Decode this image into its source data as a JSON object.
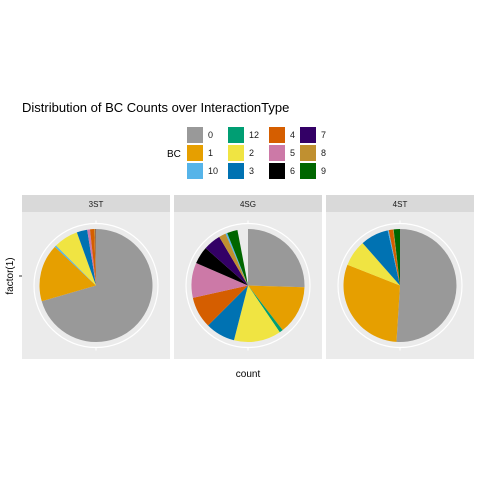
{
  "chart_data": {
    "type": "pie",
    "title": "Distribution of BC Counts over InteractionType",
    "xlabel": "count",
    "ylabel": "factor(1)",
    "legend": {
      "title": "BC",
      "position": "top",
      "entries": [
        {
          "label": "0",
          "color": "#999999"
        },
        {
          "label": "1",
          "color": "#E69F00"
        },
        {
          "label": "10",
          "color": "#56B4E9"
        },
        {
          "label": "12",
          "color": "#009E73"
        },
        {
          "label": "2",
          "color": "#F0E442"
        },
        {
          "label": "3",
          "color": "#0072B2"
        },
        {
          "label": "4",
          "color": "#D55E00"
        },
        {
          "label": "5",
          "color": "#CC79A7"
        },
        {
          "label": "6",
          "color": "#000000"
        },
        {
          "label": "7",
          "color": "#330066"
        },
        {
          "label": "8",
          "color": "#C09030"
        },
        {
          "label": "9",
          "color": "#006600"
        }
      ]
    },
    "facets": [
      {
        "name": "3ST",
        "slices": [
          {
            "category": "0",
            "fraction": 0.705
          },
          {
            "category": "1",
            "fraction": 0.165
          },
          {
            "category": "10",
            "fraction": 0.005
          },
          {
            "category": "2",
            "fraction": 0.07
          },
          {
            "category": "3",
            "fraction": 0.03
          },
          {
            "category": "5",
            "fraction": 0.008
          },
          {
            "category": "4",
            "fraction": 0.012
          },
          {
            "category": "8",
            "fraction": 0.004
          },
          {
            "category": "7",
            "fraction": 0.001
          }
        ]
      },
      {
        "name": "4SG",
        "slices": [
          {
            "category": "0",
            "fraction": 0.255
          },
          {
            "category": "1",
            "fraction": 0.14
          },
          {
            "category": "12",
            "fraction": 0.01
          },
          {
            "category": "2",
            "fraction": 0.135
          },
          {
            "category": "3",
            "fraction": 0.085
          },
          {
            "category": "4",
            "fraction": 0.09
          },
          {
            "category": "5",
            "fraction": 0.1
          },
          {
            "category": "6",
            "fraction": 0.05
          },
          {
            "category": "7",
            "fraction": 0.05
          },
          {
            "category": "8",
            "fraction": 0.02
          },
          {
            "category": "10",
            "fraction": 0.005
          },
          {
            "category": "9",
            "fraction": 0.03
          }
        ]
      },
      {
        "name": "4ST",
        "slices": [
          {
            "category": "0",
            "fraction": 0.51
          },
          {
            "category": "1",
            "fraction": 0.3
          },
          {
            "category": "2",
            "fraction": 0.075
          },
          {
            "category": "3",
            "fraction": 0.08
          },
          {
            "category": "10",
            "fraction": 0.003
          },
          {
            "category": "4",
            "fraction": 0.012
          },
          {
            "category": "8",
            "fraction": 0.002
          },
          {
            "category": "9",
            "fraction": 0.018
          }
        ]
      }
    ]
  }
}
